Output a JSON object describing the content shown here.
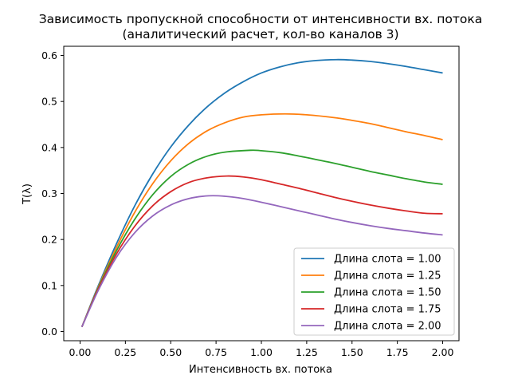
{
  "chart_data": {
    "type": "line",
    "title": "Зависимость пропускной способности от интенсивности вх. потока",
    "subtitle": "(аналитический расчет, кол-во каналов 3)",
    "xlabel": "Интенсивность вх. потока",
    "ylabel": "T(λ)",
    "xlim": [
      -0.09,
      2.09
    ],
    "ylim": [
      -0.02,
      0.62
    ],
    "x_ticks": [
      "0.00",
      "0.25",
      "0.50",
      "0.75",
      "1.00",
      "1.25",
      "1.50",
      "1.75",
      "2.00"
    ],
    "y_ticks": [
      "0.0",
      "0.1",
      "0.2",
      "0.3",
      "0.4",
      "0.5",
      "0.6"
    ],
    "grid": false,
    "legend_position": "bottom-right",
    "series": [
      {
        "name": "Длина слота = 1.00",
        "color": "#1f77b4",
        "x": [
          0.01,
          0.1,
          0.2,
          0.3,
          0.4,
          0.5,
          0.6,
          0.7,
          0.8,
          0.9,
          1.0,
          1.1,
          1.2,
          1.3,
          1.414,
          1.5,
          1.6,
          1.7,
          1.8,
          1.9,
          2.0
        ],
        "y": [
          0.01,
          0.099,
          0.19,
          0.272,
          0.342,
          0.401,
          0.449,
          0.488,
          0.519,
          0.543,
          0.562,
          0.575,
          0.584,
          0.589,
          0.591,
          0.59,
          0.587,
          0.582,
          0.576,
          0.569,
          0.562
        ]
      },
      {
        "name": "Длина слота = 1.25",
        "color": "#ff7f0e",
        "x": [
          0.01,
          0.1,
          0.2,
          0.3,
          0.4,
          0.5,
          0.6,
          0.7,
          0.8,
          0.9,
          1.0,
          1.13,
          1.25,
          1.4,
          1.5,
          1.6,
          1.7,
          1.8,
          1.9,
          2.0
        ],
        "y": [
          0.01,
          0.096,
          0.182,
          0.258,
          0.321,
          0.371,
          0.409,
          0.436,
          0.454,
          0.466,
          0.471,
          0.473,
          0.471,
          0.465,
          0.459,
          0.452,
          0.443,
          0.434,
          0.426,
          0.417
        ]
      },
      {
        "name": "Длина слота = 1.50",
        "color": "#2ca02c",
        "x": [
          0.01,
          0.1,
          0.2,
          0.3,
          0.4,
          0.5,
          0.6,
          0.7,
          0.8,
          0.94,
          1.0,
          1.1,
          1.2,
          1.3,
          1.4,
          1.5,
          1.6,
          1.7,
          1.8,
          1.9,
          2.0
        ],
        "y": [
          0.01,
          0.094,
          0.175,
          0.243,
          0.297,
          0.337,
          0.364,
          0.381,
          0.39,
          0.394,
          0.393,
          0.389,
          0.382,
          0.374,
          0.366,
          0.357,
          0.348,
          0.34,
          0.332,
          0.325,
          0.32
        ]
      },
      {
        "name": "Длина слота = 1.75",
        "color": "#d62728",
        "x": [
          0.01,
          0.1,
          0.2,
          0.3,
          0.4,
          0.5,
          0.6,
          0.7,
          0.81,
          0.9,
          1.0,
          1.1,
          1.2,
          1.3,
          1.4,
          1.5,
          1.6,
          1.7,
          1.8,
          1.9,
          2.0
        ],
        "y": [
          0.01,
          0.092,
          0.168,
          0.228,
          0.273,
          0.304,
          0.324,
          0.334,
          0.338,
          0.336,
          0.33,
          0.321,
          0.312,
          0.302,
          0.292,
          0.283,
          0.275,
          0.268,
          0.262,
          0.257,
          0.256
        ]
      },
      {
        "name": "Длина слота = 2.00",
        "color": "#9467bd",
        "x": [
          0.01,
          0.1,
          0.2,
          0.3,
          0.4,
          0.5,
          0.6,
          0.71,
          0.8,
          0.9,
          1.0,
          1.1,
          1.2,
          1.3,
          1.4,
          1.5,
          1.6,
          1.7,
          1.8,
          1.9,
          2.0
        ],
        "y": [
          0.01,
          0.089,
          0.161,
          0.214,
          0.251,
          0.275,
          0.289,
          0.295,
          0.294,
          0.289,
          0.281,
          0.272,
          0.263,
          0.254,
          0.245,
          0.237,
          0.23,
          0.224,
          0.219,
          0.214,
          0.21
        ]
      }
    ]
  }
}
